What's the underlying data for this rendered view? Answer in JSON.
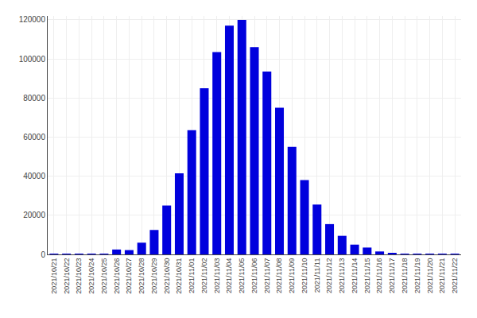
{
  "chart_data": {
    "type": "bar",
    "categories": [
      "2021/10/21",
      "2021/10/22",
      "2021/10/23",
      "2021/10/24",
      "2021/10/25",
      "2021/10/26",
      "2021/10/27",
      "2021/10/28",
      "2021/10/29",
      "2021/10/30",
      "2021/10/31",
      "2021/11/01",
      "2021/11/02",
      "2021/11/03",
      "2021/11/04",
      "2021/11/05",
      "2021/11/06",
      "2021/11/07",
      "2021/11/08",
      "2021/11/09",
      "2021/11/10",
      "2021/11/11",
      "2021/11/12",
      "2021/11/13",
      "2021/11/14",
      "2021/11/15",
      "2021/11/16",
      "2021/11/17",
      "2021/11/18",
      "2021/11/19",
      "2021/11/20",
      "2021/11/21",
      "2021/11/22"
    ],
    "values": [
      200,
      100,
      100,
      200,
      200,
      2500,
      2200,
      6000,
      12500,
      25000,
      41500,
      63500,
      85000,
      103500,
      117000,
      120000,
      106000,
      93500,
      75000,
      55000,
      38000,
      25500,
      15500,
      9500,
      5000,
      3500,
      1500,
      800,
      200,
      100,
      100,
      100,
      100
    ],
    "color": "#0000dd",
    "ylim": [
      0,
      122000
    ],
    "yticks": [
      0,
      20000,
      40000,
      60000,
      80000,
      100000,
      120000
    ],
    "grid": true
  }
}
